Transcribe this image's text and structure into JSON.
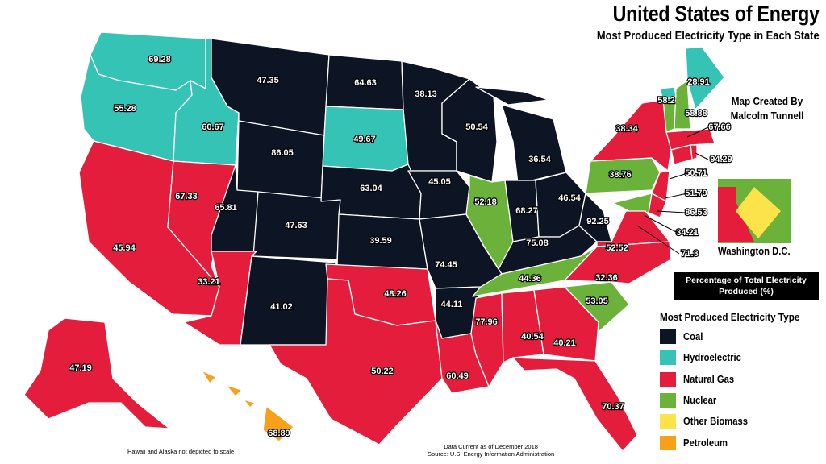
{
  "title": "United States of Energy",
  "subtitle": "Most Produced Electricity Type in Each State",
  "credit": {
    "line1": "Map Created By",
    "line2": "Malcolm Tunnell"
  },
  "dc_label": "Washington D.C.",
  "percentage_box": "Percentage of Total Electricity Produced (%)",
  "legend": {
    "title": "Most Produced Electricity Type",
    "items": [
      {
        "type": "coal",
        "label": "Coal",
        "color": "#0d1525"
      },
      {
        "type": "hydroelectric",
        "label": "Hydroelectric",
        "color": "#35c3b5"
      },
      {
        "type": "natural_gas",
        "label": "Natural Gas",
        "color": "#e41d3c"
      },
      {
        "type": "nuclear",
        "label": "Nuclear",
        "color": "#6bb23a"
      },
      {
        "type": "other_biomass",
        "label": "Other Biomass",
        "color": "#fde34a"
      },
      {
        "type": "petroleum",
        "label": "Petroleum",
        "color": "#f7a019"
      }
    ]
  },
  "footnote": "Hawaii and Alaska not depicted to scale",
  "source": {
    "line1": "Data Current as of December 2018",
    "line2": "Source: U.S. Energy Information Administration"
  },
  "states": [
    {
      "state": "WA",
      "type": "hydroelectric",
      "value": "69.28"
    },
    {
      "state": "OR",
      "type": "hydroelectric",
      "value": "55.28"
    },
    {
      "state": "ID",
      "type": "hydroelectric",
      "value": "60.67"
    },
    {
      "state": "MT",
      "type": "coal",
      "value": "47.35"
    },
    {
      "state": "ND",
      "type": "coal",
      "value": "64.63"
    },
    {
      "state": "MN",
      "type": "coal",
      "value": "38.13"
    },
    {
      "state": "WY",
      "type": "coal",
      "value": "86.05"
    },
    {
      "state": "SD",
      "type": "hydroelectric",
      "value": "49.67"
    },
    {
      "state": "WI",
      "type": "coal",
      "value": "50.54"
    },
    {
      "state": "MI",
      "type": "coal",
      "value": "36.54"
    },
    {
      "state": "CA",
      "type": "natural_gas",
      "value": "45.94"
    },
    {
      "state": "NV",
      "type": "natural_gas",
      "value": "67.33"
    },
    {
      "state": "UT",
      "type": "coal",
      "value": "65.81"
    },
    {
      "state": "CO",
      "type": "coal",
      "value": "47.63"
    },
    {
      "state": "NE",
      "type": "coal",
      "value": "63.04"
    },
    {
      "state": "IA",
      "type": "coal",
      "value": "45.05"
    },
    {
      "state": "IL",
      "type": "nuclear",
      "value": "52.18"
    },
    {
      "state": "IN",
      "type": "coal",
      "value": "68.27"
    },
    {
      "state": "OH",
      "type": "coal",
      "value": "46.54"
    },
    {
      "state": "PA",
      "type": "nuclear",
      "value": "38.76"
    },
    {
      "state": "NY",
      "type": "natural_gas",
      "value": "38.34"
    },
    {
      "state": "VT",
      "type": "nuclear",
      "value": "58.88"
    },
    {
      "state": "NH",
      "type": "nuclear",
      "value": "58.88"
    },
    {
      "state": "ME",
      "type": "hydroelectric",
      "value": "28.91"
    },
    {
      "state": "VT_hydro",
      "type": "hydroelectric",
      "value": "58.2"
    },
    {
      "state": "MA",
      "type": "natural_gas",
      "value": "67.66"
    },
    {
      "state": "RI",
      "type": "natural_gas",
      "value": "94.29"
    },
    {
      "state": "CT",
      "type": "natural_gas",
      "value": ""
    },
    {
      "state": "NJ",
      "type": "natural_gas",
      "value": "50.71"
    },
    {
      "state": "DE",
      "type": "natural_gas",
      "value": "86.53"
    },
    {
      "state": "MD",
      "type": "nuclear",
      "value": "34.21"
    },
    {
      "state": "DC_callout_label",
      "type": "",
      "value": "51.79"
    },
    {
      "state": "AZ",
      "type": "natural_gas",
      "value": "33.21"
    },
    {
      "state": "NM",
      "type": "coal",
      "value": "41.02"
    },
    {
      "state": "KS",
      "type": "coal",
      "value": "39.59"
    },
    {
      "state": "MO",
      "type": "coal",
      "value": "74.45"
    },
    {
      "state": "KY",
      "type": "coal",
      "value": "75.08"
    },
    {
      "state": "WV",
      "type": "coal",
      "value": "92.25"
    },
    {
      "state": "VA",
      "type": "natural_gas",
      "value": "52.52"
    },
    {
      "state": "VA_nuclear_callout",
      "type": "nuclear",
      "value": "71.3"
    },
    {
      "state": "OK",
      "type": "natural_gas",
      "value": "48.26"
    },
    {
      "state": "AR",
      "type": "coal",
      "value": "44.11"
    },
    {
      "state": "TN",
      "type": "nuclear",
      "value": "44.36"
    },
    {
      "state": "NC",
      "type": "natural_gas",
      "value": "32.36"
    },
    {
      "state": "SC",
      "type": "nuclear",
      "value": "53.05"
    },
    {
      "state": "TX",
      "type": "natural_gas",
      "value": "50.22"
    },
    {
      "state": "LA",
      "type": "natural_gas",
      "value": "60.49"
    },
    {
      "state": "MS",
      "type": "natural_gas",
      "value": "77.96"
    },
    {
      "state": "AL",
      "type": "natural_gas",
      "value": "40.54"
    },
    {
      "state": "GA",
      "type": "natural_gas",
      "value": "40.21"
    },
    {
      "state": "FL",
      "type": "natural_gas",
      "value": "70.37"
    },
    {
      "state": "AK",
      "type": "natural_gas",
      "value": "47.19"
    },
    {
      "state": "HI",
      "type": "petroleum",
      "value": "68.89"
    }
  ]
}
